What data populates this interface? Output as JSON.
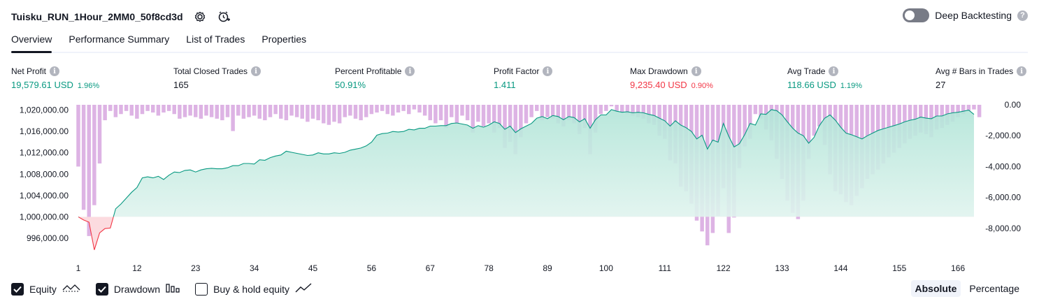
{
  "header": {
    "title": "Tuisku_RUN_1Hour_2MM0_50f8cd3d",
    "settings_icon": "gear-icon",
    "alert_icon": "alert-clock-icon"
  },
  "deep_backtesting": {
    "label": "Deep Backtesting",
    "enabled": false,
    "help": "?"
  },
  "tabs": [
    {
      "label": "Overview",
      "active": true
    },
    {
      "label": "Performance Summary"
    },
    {
      "label": "List of Trades"
    },
    {
      "label": "Properties"
    }
  ],
  "stats": [
    {
      "label": "Net Profit",
      "value": "19,579.61 USD",
      "pct": "1.96%",
      "tone": "pos"
    },
    {
      "label": "Total Closed Trades",
      "value": "165",
      "pct": "",
      "tone": "neu"
    },
    {
      "label": "Percent Profitable",
      "value": "50.91%",
      "pct": "",
      "tone": "pos"
    },
    {
      "label": "Profit Factor",
      "value": "1.411",
      "pct": "",
      "tone": "pos"
    },
    {
      "label": "Max Drawdown",
      "value": "9,235.40 USD",
      "pct": "0.90%",
      "tone": "neg"
    },
    {
      "label": "Avg Trade",
      "value": "118.66 USD",
      "pct": "1.19%",
      "tone": "pos"
    },
    {
      "label": "Avg # Bars in Trades",
      "value": "27",
      "pct": "",
      "tone": "neu"
    }
  ],
  "legend": {
    "equity": {
      "label": "Equity",
      "checked": true
    },
    "drawdown": {
      "label": "Drawdown",
      "checked": true
    },
    "buyhold": {
      "label": "Buy & hold equity",
      "checked": false
    }
  },
  "modes": {
    "absolute": "Absolute",
    "percentage": "Percentage",
    "selected": "Absolute"
  },
  "chart_data": {
    "type": "area",
    "x_ticks": [
      "1",
      "12",
      "23",
      "34",
      "45",
      "56",
      "67",
      "78",
      "89",
      "100",
      "111",
      "122",
      "133",
      "144",
      "155",
      "166"
    ],
    "left_ticks": [
      "1,020,000.00",
      "1,016,000.00",
      "1,012,000.00",
      "1,008,000.00",
      "1,004,000.00",
      "1,000,000.00",
      "996,000.00"
    ],
    "right_ticks": [
      "0.00",
      "-2,000.00",
      "-4,000.00",
      "-6,000.00",
      "-8,000.00"
    ],
    "equity_ylim": [
      993500,
      1021000
    ],
    "drawdown_ylim": [
      -9500,
      0
    ],
    "baseline": 1000000,
    "colors": {
      "equity_line": "#089981",
      "equity_fill_top": "#b2e5d8",
      "equity_fill_bottom": "#eef8f5",
      "loss_line": "#f23645",
      "loss_fill": "#fcdbdf",
      "drawdown_bar": "#ce93d8"
    },
    "series": [
      {
        "name": "Equity",
        "values": [
          1000000,
          999400,
          999000,
          993800,
          997000,
          997800,
          997900,
          1001500,
          1002400,
          1003500,
          1004600,
          1005500,
          1007300,
          1007500,
          1007300,
          1007600,
          1007000,
          1007800,
          1008400,
          1008300,
          1008700,
          1008800,
          1008400,
          1008800,
          1009000,
          1009100,
          1009000,
          1009000,
          1009200,
          1009600,
          1009600,
          1010000,
          1010000,
          1009900,
          1010700,
          1010600,
          1011100,
          1011400,
          1011600,
          1012300,
          1012100,
          1011900,
          1011700,
          1011500,
          1011600,
          1012000,
          1011800,
          1011800,
          1012000,
          1011900,
          1012100,
          1012500,
          1012700,
          1012900,
          1013300,
          1014000,
          1015300,
          1015600,
          1015700,
          1016000,
          1015900,
          1016000,
          1016400,
          1016300,
          1016600,
          1016600,
          1017000,
          1017000,
          1017100,
          1017100,
          1017500,
          1017600,
          1017400,
          1017200,
          1016600,
          1017100,
          1016800,
          1017200,
          1017800,
          1017500,
          1016400,
          1017000,
          1015800,
          1016500,
          1017000,
          1017500,
          1018500,
          1018800,
          1018400,
          1019000,
          1018800,
          1018200,
          1018800,
          1018600,
          1017800,
          1018400,
          1016600,
          1018200,
          1019100,
          1019100,
          1020100,
          1019800,
          1019600,
          1019700,
          1019500,
          1019600,
          1019500,
          1019200,
          1019000,
          1018500,
          1018000,
          1017000,
          1018000,
          1017200,
          1016700,
          1016000,
          1014600,
          1015300,
          1012700,
          1014400,
          1014000,
          1017500,
          1015100,
          1013100,
          1013700,
          1015400,
          1017500,
          1017200,
          1019300,
          1019200,
          1020100,
          1019900,
          1019100,
          1017800,
          1016600,
          1015700,
          1015200,
          1013800,
          1014900,
          1017100,
          1018500,
          1019100,
          1018100,
          1016800,
          1015700,
          1015400,
          1015000,
          1014600,
          1015200,
          1015700,
          1016200,
          1016500,
          1016800,
          1017100,
          1017400,
          1017800,
          1018100,
          1018300,
          1018700,
          1018500,
          1018400,
          1018900,
          1018900,
          1019300,
          1019500,
          1019600,
          1019800,
          1020000,
          1019200
        ],
        "role": "left"
      },
      {
        "name": "Drawdown",
        "values": [
          -4000,
          -6800,
          -8500,
          -6500,
          -3800,
          -1000,
          -400,
          -800,
          -600,
          -400,
          -700,
          -900,
          -600,
          -400,
          -500,
          -700,
          -500,
          -400,
          -600,
          -900,
          -800,
          -700,
          -800,
          -900,
          -700,
          -800,
          -900,
          -1000,
          -800,
          -1700,
          -700,
          -900,
          -800,
          -700,
          -900,
          -1000,
          -800,
          -600,
          -900,
          -1000,
          -700,
          -800,
          -900,
          -1100,
          -900,
          -1000,
          -1200,
          -1300,
          -1100,
          -1200,
          -800,
          -700,
          -900,
          -1000,
          -800,
          -600,
          -500,
          -400,
          -600,
          -700,
          -500,
          -400,
          -600,
          -300,
          -500,
          -700,
          -1000,
          -1200,
          -1000,
          -1500,
          -800,
          -1200,
          -700,
          -1000,
          -1800,
          -1100,
          -1400,
          -1200,
          -1800,
          -1500,
          -2800,
          -2400,
          -3200,
          -2100,
          -1200,
          -800,
          -400,
          -1000,
          -800,
          -900,
          -1200,
          -1400,
          -1000,
          -1200,
          -1900,
          -1500,
          -3200,
          -1800,
          -600,
          -400,
          -100,
          -400,
          -500,
          -600,
          -700,
          -800,
          -900,
          -1200,
          -1300,
          -2000,
          -2200,
          -3600,
          -3800,
          -5300,
          -5600,
          -6400,
          -7500,
          -8200,
          -9100,
          -8300,
          -7200,
          -5400,
          -8300,
          -7300,
          -4100,
          -2700,
          -2200,
          -600,
          -900,
          -1600,
          -2300,
          -3500,
          -4800,
          -6200,
          -7000,
          -7400,
          -6200,
          -3500,
          -2000,
          -1400,
          -2600,
          -4500,
          -5600,
          -5800,
          -6300,
          -6500,
          -5900,
          -5400,
          -4800,
          -4500,
          -4200,
          -3800,
          -3400,
          -3100,
          -2800,
          -2500,
          -2200,
          -2000,
          -1800,
          -1900,
          -2100,
          -1600,
          -1500,
          -1300,
          -1100,
          -800,
          -600,
          -400,
          -300,
          -800
        ],
        "role": "right"
      }
    ]
  }
}
